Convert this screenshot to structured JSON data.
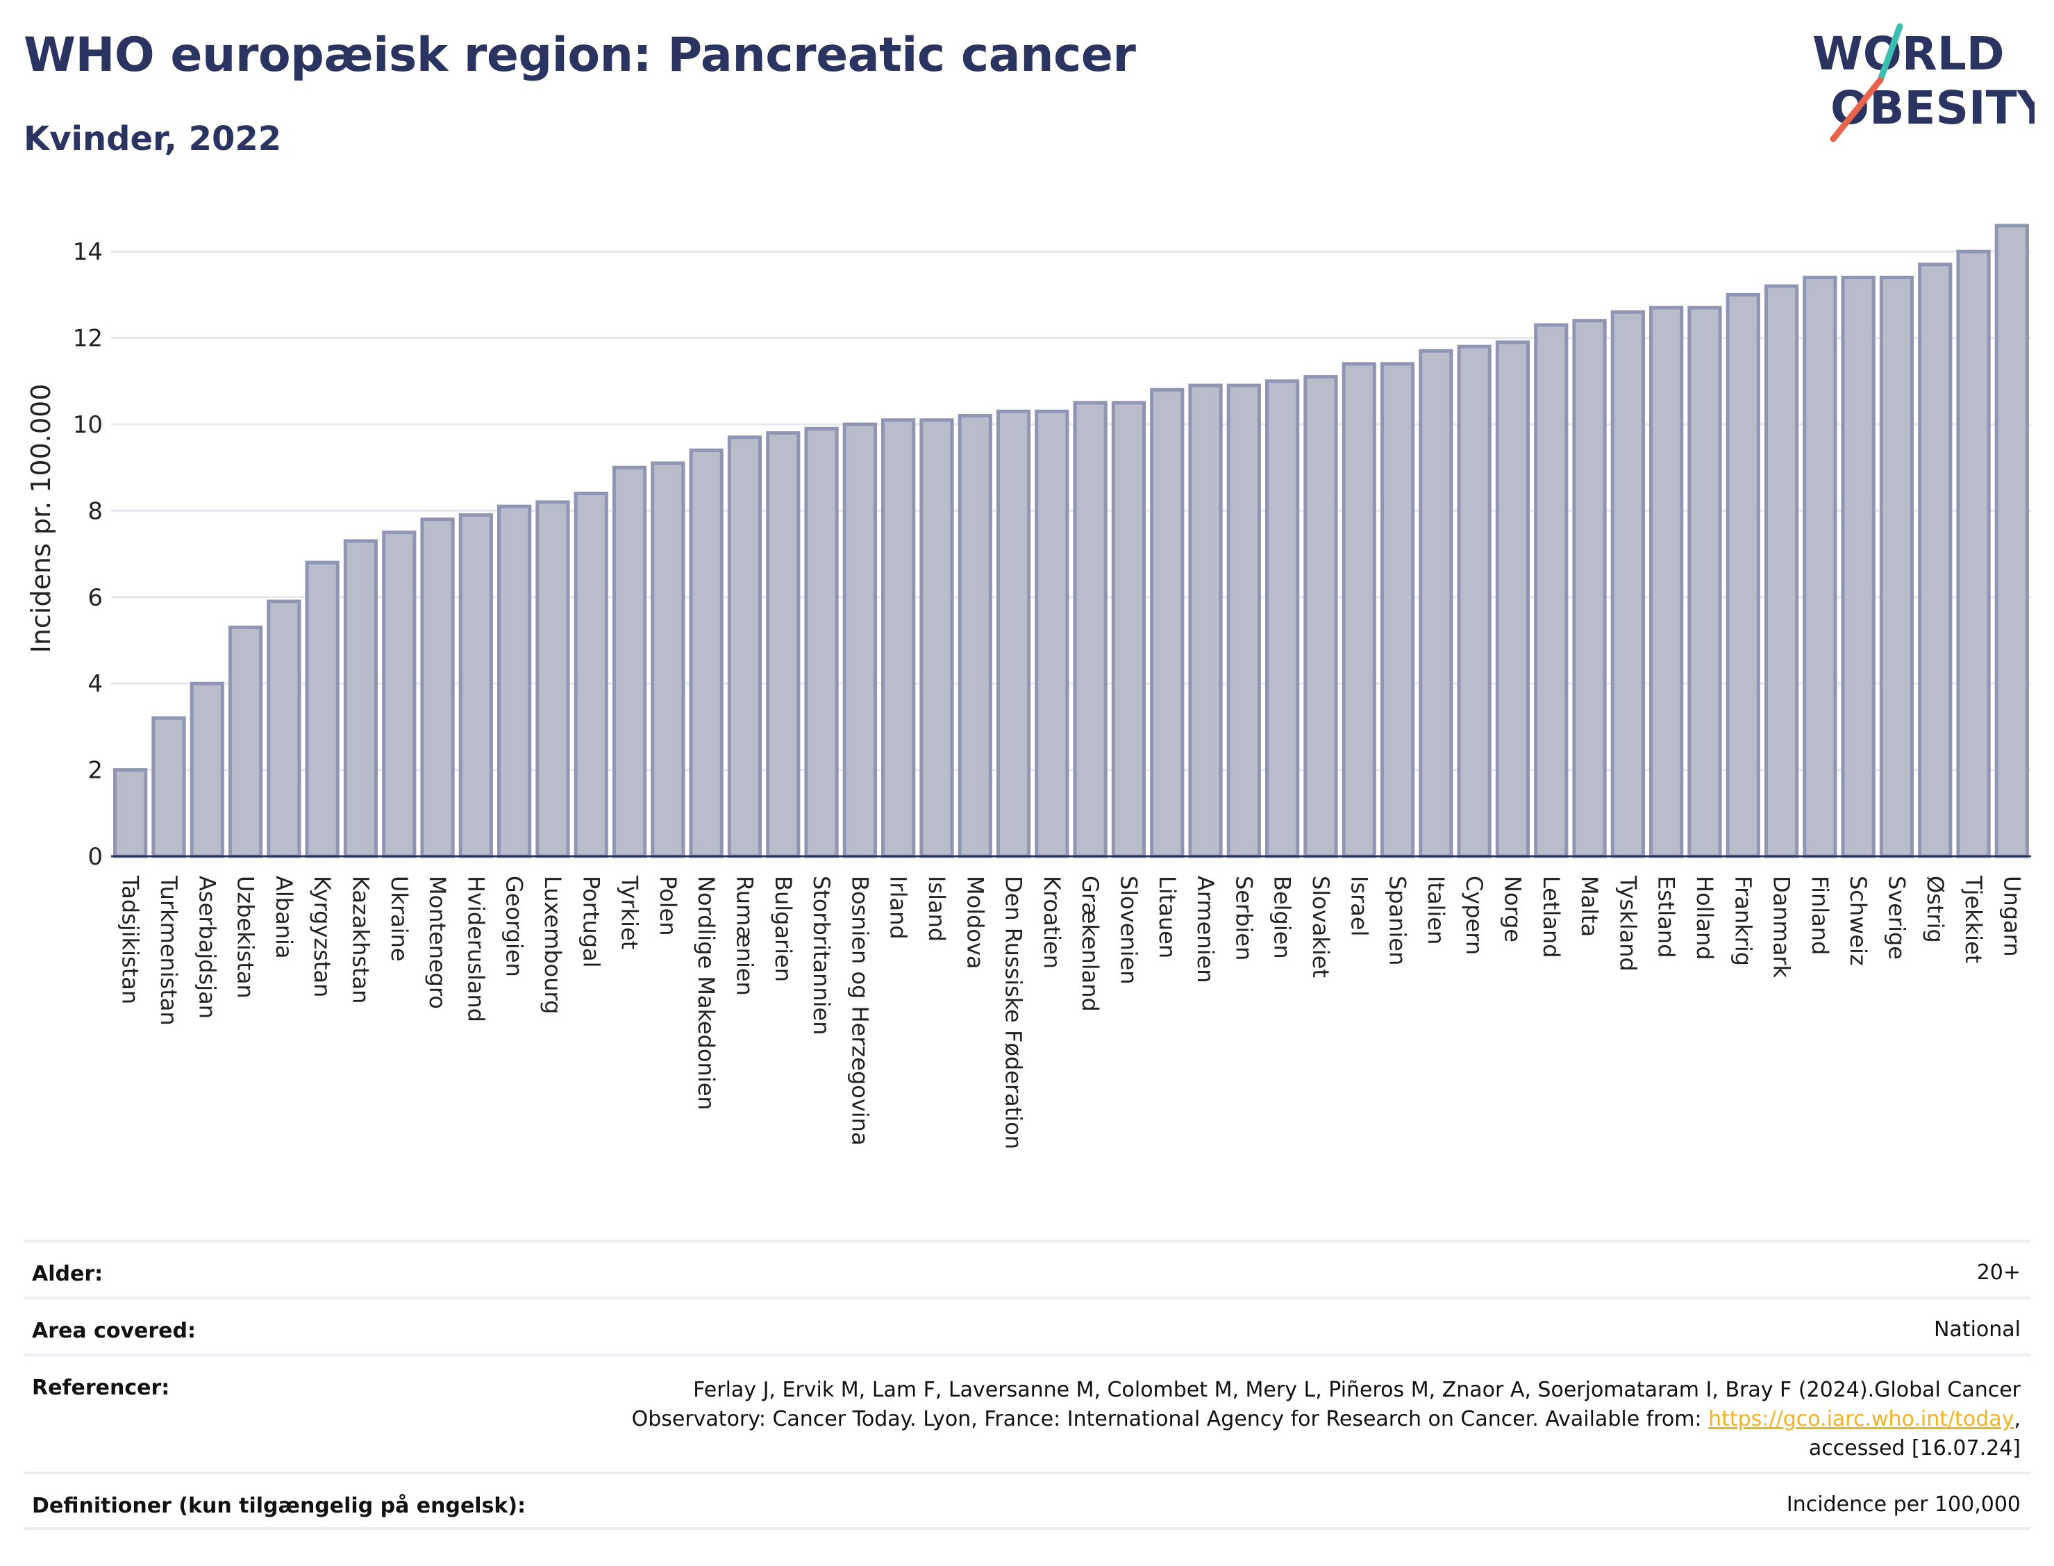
{
  "header": {
    "title": "WHO europæisk region: Pancreatic cancer",
    "subtitle": "Kvinder, 2022"
  },
  "logo": {
    "line1": "WORLD",
    "line2": "OBESITY",
    "colors": {
      "text": "#2b3460",
      "slash_teal": "#3bbfb0",
      "slash_red": "#e8644f"
    }
  },
  "chart_data": {
    "type": "bar",
    "title": "",
    "xlabel": "",
    "ylabel": "Incidens pr. 100.000",
    "ylim": [
      0,
      15
    ],
    "yticks": [
      0,
      2,
      4,
      6,
      8,
      10,
      12,
      14
    ],
    "grid": true,
    "bar_color": "#b9bccb",
    "bar_edge_color": "#8f95b2",
    "categories": [
      "Tadsjikistan",
      "Turkmenistan",
      "Aserbajdsjan",
      "Uzbekistan",
      "Albania",
      "Kyrgyzstan",
      "Kazakhstan",
      "Ukraine",
      "Montenegro",
      "Hviderusland",
      "Georgien",
      "Luxembourg",
      "Portugal",
      "Tyrkiet",
      "Polen",
      "Nordlige Makedonien",
      "Rumænien",
      "Bulgarien",
      "Storbritannien",
      "Bosnien og Herzegovina",
      "Irland",
      "Island",
      "Moldova",
      "Den Russiske Føderation",
      "Kroatien",
      "Grækenland",
      "Slovenien",
      "Litauen",
      "Armenien",
      "Serbien",
      "Belgien",
      "Slovakiet",
      "Israel",
      "Spanien",
      "Italien",
      "Cypern",
      "Norge",
      "Letland",
      "Malta",
      "Tyskland",
      "Estland",
      "Holland",
      "Frankrig",
      "Danmark",
      "Finland",
      "Schweiz",
      "Sverige",
      "Østrig",
      "Tjekkiet",
      "Ungarn"
    ],
    "values": [
      2.0,
      3.2,
      4.0,
      5.3,
      5.9,
      6.8,
      7.3,
      7.5,
      7.8,
      7.9,
      8.1,
      8.2,
      8.4,
      9.0,
      9.1,
      9.4,
      9.7,
      9.8,
      9.9,
      10.0,
      10.1,
      10.1,
      10.2,
      10.3,
      10.3,
      10.5,
      10.5,
      10.8,
      10.9,
      10.9,
      11.0,
      11.1,
      11.4,
      11.4,
      11.7,
      11.8,
      11.9,
      12.3,
      12.4,
      12.6,
      12.7,
      12.7,
      13.0,
      13.2,
      13.4,
      13.4,
      13.4,
      13.7,
      14.0,
      14.6
    ]
  },
  "meta": {
    "age_label": "Alder:",
    "age_value": "20+",
    "area_label": "Area covered:",
    "area_value": "National",
    "ref_label": "Referencer:",
    "ref_text_1": "Ferlay J, Ervik M, Lam F, Laversanne M, Colombet M, Mery L, Piñeros M, Znaor A, Soerjomataram I, Bray F (2024).Global Cancer Observatory: Cancer Today. Lyon, France: International Agency for Research on Cancer. Available from: ",
    "ref_link": "https://gco.iarc.who.int/today",
    "ref_text_2": ", accessed [16.07.24]",
    "def_label": "Definitioner (kun tilgængelig på engelsk):",
    "def_value": "Incidence per 100,000"
  }
}
